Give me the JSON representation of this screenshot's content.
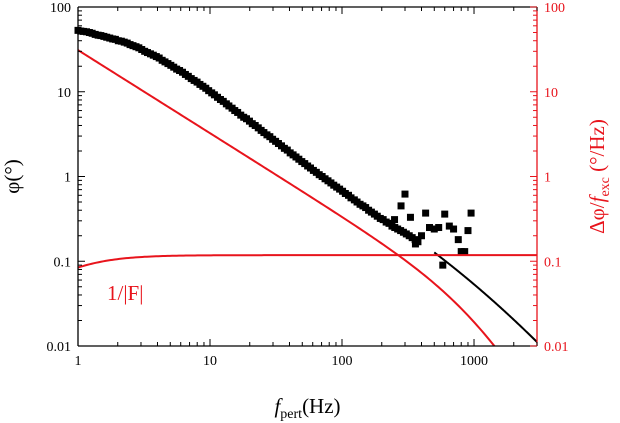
{
  "chart_data": {
    "type": "scatter",
    "x_scale": "log",
    "y_scale": "log",
    "xlim": [
      1,
      3000
    ],
    "ylim_left": [
      0.01,
      100
    ],
    "ylim_right": [
      0.01,
      100
    ],
    "x_ticks": [
      {
        "value": 1,
        "label": "1"
      },
      {
        "value": 10,
        "label": "10"
      },
      {
        "value": 100,
        "label": "100"
      },
      {
        "value": 1000,
        "label": "1000"
      }
    ],
    "y_ticks_left": [
      {
        "value": 0.01,
        "label": "0.01"
      },
      {
        "value": 0.1,
        "label": "0.1"
      },
      {
        "value": 1,
        "label": "1"
      },
      {
        "value": 10,
        "label": "10"
      },
      {
        "value": 100,
        "label": "100"
      }
    ],
    "y_ticks_right": [
      {
        "value": 0.01,
        "label": "0.01"
      },
      {
        "value": 0.1,
        "label": "0.1"
      },
      {
        "value": 1,
        "label": "1"
      },
      {
        "value": 10,
        "label": "10"
      },
      {
        "value": 100,
        "label": "100"
      }
    ],
    "xlabel": {
      "main": "f",
      "sub": "pert",
      "rest": "(Hz)"
    },
    "ylabel_left": "φ(°)",
    "ylabel_right": {
      "prefix": "Δφ/",
      "main": "f",
      "sub": "exc",
      "rest": "  (°/Hz)"
    },
    "annotation": "1/|F|",
    "colors": {
      "black": "#000000",
      "red": "#e8141c"
    },
    "series": [
      {
        "name": "phi_measured",
        "kind": "markers",
        "color": "#000000",
        "points": [
          [
            1.0,
            53
          ],
          [
            1.05,
            52
          ],
          [
            1.1,
            51.5
          ],
          [
            1.16,
            51
          ],
          [
            1.22,
            50
          ],
          [
            1.28,
            49
          ],
          [
            1.35,
            47.5
          ],
          [
            1.42,
            46.5
          ],
          [
            1.49,
            46
          ],
          [
            1.57,
            45
          ],
          [
            1.65,
            44
          ],
          [
            1.74,
            43
          ],
          [
            1.83,
            42
          ],
          [
            1.92,
            41.5
          ],
          [
            2.02,
            40
          ],
          [
            2.13,
            39.5
          ],
          [
            2.24,
            38.5
          ],
          [
            2.36,
            37.5
          ],
          [
            2.48,
            36
          ],
          [
            2.61,
            35
          ],
          [
            2.75,
            34
          ],
          [
            2.89,
            33
          ],
          [
            3.04,
            31.5
          ],
          [
            3.2,
            30
          ],
          [
            3.36,
            29
          ],
          [
            3.54,
            28
          ],
          [
            3.72,
            27
          ],
          [
            3.92,
            26
          ],
          [
            4.12,
            25
          ],
          [
            4.34,
            23.5
          ],
          [
            4.56,
            22.5
          ],
          [
            4.8,
            21.5
          ],
          [
            5.05,
            20.5
          ],
          [
            5.31,
            19.5
          ],
          [
            5.59,
            18.5
          ],
          [
            5.88,
            17.8
          ],
          [
            6.19,
            17
          ],
          [
            6.51,
            16
          ],
          [
            6.85,
            15.2
          ],
          [
            7.21,
            14.3
          ],
          [
            7.58,
            13.6
          ],
          [
            7.98,
            13
          ],
          [
            8.39,
            12.2
          ],
          [
            8.83,
            11.6
          ],
          [
            9.29,
            11
          ],
          [
            9.77,
            10.3
          ],
          [
            10.3,
            9.7
          ],
          [
            10.8,
            9.2
          ],
          [
            11.4,
            8.6
          ],
          [
            12.0,
            8.1
          ],
          [
            12.6,
            7.7
          ],
          [
            13.3,
            7.2
          ],
          [
            13.9,
            6.8
          ],
          [
            14.7,
            6.4
          ],
          [
            15.4,
            6.0
          ],
          [
            16.2,
            5.7
          ],
          [
            17.1,
            5.3
          ],
          [
            18.0,
            5.0
          ],
          [
            18.9,
            4.8
          ],
          [
            19.9,
            4.5
          ],
          [
            20.9,
            4.2
          ],
          [
            22.0,
            4.0
          ],
          [
            23.2,
            3.75
          ],
          [
            24.4,
            3.5
          ],
          [
            25.6,
            3.3
          ],
          [
            27.0,
            3.1
          ],
          [
            28.4,
            2.95
          ],
          [
            29.8,
            2.75
          ],
          [
            31.4,
            2.6
          ],
          [
            33.0,
            2.45
          ],
          [
            34.8,
            2.3
          ],
          [
            36.6,
            2.15
          ],
          [
            38.5,
            2.05
          ],
          [
            40.5,
            1.9
          ],
          [
            42.6,
            1.8
          ],
          [
            44.8,
            1.7
          ],
          [
            47.1,
            1.6
          ],
          [
            49.6,
            1.5
          ],
          [
            52.2,
            1.42
          ],
          [
            54.9,
            1.33
          ],
          [
            57.7,
            1.26
          ],
          [
            60.7,
            1.18
          ],
          [
            63.9,
            1.12
          ],
          [
            67.2,
            1.05
          ],
          [
            70.7,
            1.0
          ],
          [
            74.4,
            0.94
          ],
          [
            78.3,
            0.89
          ],
          [
            82.4,
            0.84
          ],
          [
            86.6,
            0.79
          ],
          [
            91.1,
            0.75
          ],
          [
            95.9,
            0.71
          ],
          [
            101,
            0.67
          ],
          [
            106,
            0.63
          ],
          [
            112,
            0.6
          ],
          [
            117,
            0.56
          ],
          [
            124,
            0.53
          ],
          [
            130,
            0.5
          ],
          [
            137,
            0.47
          ],
          [
            144,
            0.45
          ],
          [
            151,
            0.43
          ],
          [
            159,
            0.4
          ],
          [
            167,
            0.38
          ],
          [
            176,
            0.36
          ],
          [
            185,
            0.34
          ],
          [
            195,
            0.32
          ],
          [
            205,
            0.31
          ],
          [
            216,
            0.29
          ],
          [
            227,
            0.28
          ],
          [
            239,
            0.26
          ],
          [
            251,
            0.25
          ],
          [
            264,
            0.24
          ],
          [
            278,
            0.23
          ],
          [
            292,
            0.22
          ],
          [
            307,
            0.21
          ],
          [
            323,
            0.2
          ],
          [
            340,
            0.19
          ],
          [
            358,
            0.18
          ],
          [
            376,
            0.17
          ],
          [
            250,
            0.31
          ],
          [
            280,
            0.45
          ],
          [
            300,
            0.62
          ],
          [
            330,
            0.33
          ],
          [
            360,
            0.16
          ],
          [
            400,
            0.2
          ],
          [
            430,
            0.37
          ],
          [
            460,
            0.25
          ],
          [
            500,
            0.24
          ],
          [
            540,
            0.25
          ],
          [
            580,
            0.09
          ],
          [
            600,
            0.36
          ],
          [
            650,
            0.26
          ],
          [
            700,
            0.24
          ],
          [
            760,
            0.18
          ],
          [
            800,
            0.13
          ],
          [
            850,
            0.13
          ],
          [
            900,
            0.23
          ],
          [
            950,
            0.37
          ]
        ]
      },
      {
        "name": "phi_fit",
        "kind": "line",
        "color": "#000000",
        "x_range": [
          500,
          3000
        ],
        "model": {
          "form": "A * x^(-p) / (1 + (x/x0)^q)",
          "A": 55,
          "p": 0.92,
          "x0": 1300,
          "q": 0.9
        }
      },
      {
        "name": "delta_phi_over_f_exc",
        "kind": "line",
        "color": "#e8141c",
        "x_range": [
          1,
          3000
        ],
        "model": {
          "form": "A * x^(-p) / (1 + (x/x0)^q)",
          "A": 31,
          "p": 0.98,
          "x0": 1100,
          "q": 1.6
        }
      },
      {
        "name": "1/|F|",
        "kind": "line",
        "color": "#e8141c",
        "x_range": [
          1,
          3000
        ],
        "model": {
          "form": "a / (1 + (c/x)^2)^0.5",
          "a": 0.118,
          "c": 0.98
        }
      }
    ]
  }
}
